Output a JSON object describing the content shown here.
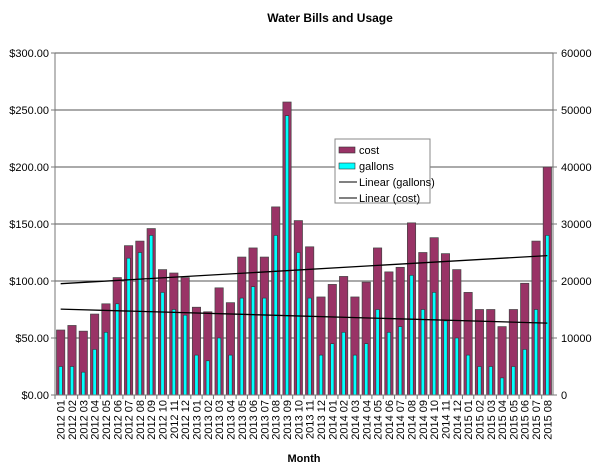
{
  "chart_data": {
    "type": "bar",
    "title": "Water Bills and Usage",
    "xlabel": "Month",
    "ylabel": "",
    "ylabel_right": "",
    "ylim": [
      0,
      300
    ],
    "ylim_right": [
      0,
      60000
    ],
    "yticks": [
      "$0.00",
      "$50.00",
      "$100.00",
      "$150.00",
      "$200.00",
      "$250.00",
      "$300.00"
    ],
    "yticks_right": [
      "0",
      "10000",
      "20000",
      "30000",
      "40000",
      "50000",
      "60000"
    ],
    "grid": true,
    "legend_position": "center-right",
    "categories": [
      "2012 01",
      "2012 02",
      "2012 03",
      "2012 04",
      "2012 05",
      "2012 06",
      "2012 07",
      "2012 08",
      "2012 09",
      "2012 10",
      "2012 11",
      "2012 12",
      "2013 01",
      "2013 02",
      "2013 03",
      "2013 04",
      "2013 05",
      "2013 06",
      "2013 07",
      "2013 08",
      "2013 09",
      "2013 10",
      "2013 11",
      "2013 12",
      "2014 01",
      "2014 02",
      "2014 03",
      "2014 04",
      "2014 05",
      "2014 06",
      "2014 07",
      "2014 08",
      "2014 09",
      "2014 10",
      "2014 11",
      "2014 12",
      "2015 01",
      "2015 02",
      "2015 03",
      "2015 04",
      "2015 05",
      "2015 06",
      "2015 07",
      "2015 08"
    ],
    "series": [
      {
        "name": "cost",
        "axis": "left",
        "color": "#993366",
        "values": [
          57,
          61,
          56,
          71,
          80,
          103,
          131,
          135,
          146,
          110,
          107,
          103,
          77,
          73,
          94,
          81,
          121,
          129,
          121,
          165,
          257,
          153,
          130,
          86,
          97,
          104,
          86,
          99,
          129,
          108,
          112,
          151,
          125,
          138,
          124,
          110,
          90,
          75,
          75,
          60,
          75,
          98,
          135,
          200
        ]
      },
      {
        "name": "gallons",
        "axis": "right",
        "color": "#00ffff",
        "values": [
          5000,
          5000,
          4000,
          8000,
          11000,
          16000,
          24000,
          25000,
          28000,
          18000,
          15000,
          14000,
          7000,
          6000,
          10000,
          7000,
          17000,
          19000,
          17000,
          28000,
          49000,
          25000,
          17000,
          7000,
          9000,
          11000,
          7000,
          9000,
          15000,
          11000,
          12000,
          21000,
          15000,
          18000,
          13000,
          10000,
          7000,
          5000,
          5000,
          3000,
          5000,
          8000,
          15000,
          28000
        ]
      }
    ],
    "trendlines": [
      {
        "name": "Linear (gallons)",
        "of": "gallons",
        "type": "linear",
        "color": "#000000"
      },
      {
        "name": "Linear (cost)",
        "of": "cost",
        "type": "linear",
        "color": "#000000"
      }
    ]
  }
}
